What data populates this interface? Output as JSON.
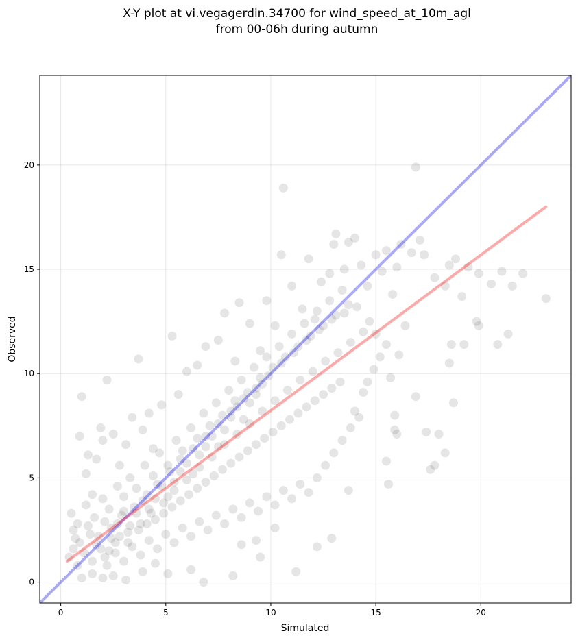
{
  "chart_data": {
    "type": "scatter",
    "title_lines": [
      "X-Y plot at vi.vegagerdin.34700 for wind_speed_at_10m_agl",
      "from 00-06h during autumn"
    ],
    "xlabel": "Simulated",
    "ylabel": "Observed",
    "xlim": [
      -1,
      24.3
    ],
    "ylim": [
      -1,
      24.3
    ],
    "xticks": [
      0,
      5,
      10,
      15,
      20
    ],
    "yticks": [
      0,
      5,
      10,
      15,
      20
    ],
    "grid": true,
    "point_color": "#333333",
    "series": [
      {
        "values": [
          [
            0.5,
            3.3
          ],
          [
            0.8,
            2.8
          ],
          [
            0.9,
            7.0
          ],
          [
            1.0,
            8.9
          ],
          [
            1.2,
            5.2
          ],
          [
            1.3,
            6.1
          ],
          [
            1.5,
            4.2
          ],
          [
            1.7,
            5.9
          ],
          [
            1.9,
            7.4
          ],
          [
            2.2,
            9.7
          ],
          [
            2.0,
            6.8
          ],
          [
            2.5,
            7.1
          ],
          [
            2.8,
            5.6
          ],
          [
            3.1,
            6.6
          ],
          [
            3.4,
            7.9
          ],
          [
            3.7,
            10.7
          ],
          [
            3.9,
            7.3
          ],
          [
            4.2,
            8.1
          ],
          [
            4.4,
            6.4
          ],
          [
            4.8,
            8.5
          ],
          [
            5.3,
            11.8
          ],
          [
            5.6,
            9.0
          ],
          [
            6.0,
            10.1
          ],
          [
            6.5,
            10.4
          ],
          [
            6.9,
            11.3
          ],
          [
            7.5,
            11.6
          ],
          [
            7.8,
            12.9
          ],
          [
            8.3,
            10.6
          ],
          [
            8.5,
            13.4
          ],
          [
            9.0,
            12.4
          ],
          [
            9.5,
            11.1
          ],
          [
            9.8,
            13.5
          ],
          [
            10.2,
            12.3
          ],
          [
            10.5,
            15.7
          ],
          [
            10.6,
            18.9
          ],
          [
            11.0,
            14.2
          ],
          [
            11.5,
            13.1
          ],
          [
            11.8,
            15.5
          ],
          [
            12.1,
            12.6
          ],
          [
            12.4,
            14.4
          ],
          [
            12.8,
            14.8
          ],
          [
            13.1,
            16.7
          ],
          [
            13.0,
            16.2
          ],
          [
            13.5,
            15.0
          ],
          [
            13.7,
            16.3
          ],
          [
            14.0,
            16.5
          ],
          [
            14.3,
            15.2
          ],
          [
            14.6,
            14.2
          ],
          [
            15.0,
            15.7
          ],
          [
            15.3,
            14.9
          ],
          [
            15.5,
            15.9
          ],
          [
            15.8,
            13.8
          ],
          [
            16.0,
            15.1
          ],
          [
            16.2,
            16.2
          ],
          [
            16.7,
            15.8
          ],
          [
            16.9,
            19.9
          ],
          [
            17.1,
            16.4
          ],
          [
            17.3,
            15.7
          ],
          [
            17.8,
            14.6
          ],
          [
            18.3,
            14.2
          ],
          [
            18.5,
            15.2
          ],
          [
            18.8,
            15.5
          ],
          [
            19.1,
            13.7
          ],
          [
            19.4,
            15.1
          ],
          [
            19.9,
            14.8
          ],
          [
            20.5,
            14.3
          ],
          [
            21.0,
            14.9
          ],
          [
            21.5,
            14.2
          ],
          [
            22.0,
            14.8
          ],
          [
            23.1,
            13.6
          ],
          [
            19.8,
            12.5
          ],
          [
            19.9,
            12.3
          ],
          [
            21.3,
            11.9
          ],
          [
            20.8,
            11.4
          ],
          [
            18.6,
            11.4
          ],
          [
            19.2,
            11.4
          ],
          [
            18.5,
            10.5
          ],
          [
            16.9,
            8.9
          ],
          [
            18.7,
            8.6
          ],
          [
            15.9,
            8.0
          ],
          [
            15.9,
            7.3
          ],
          [
            16.0,
            7.1
          ],
          [
            17.4,
            7.2
          ],
          [
            18.0,
            7.1
          ],
          [
            18.3,
            6.2
          ],
          [
            17.6,
            5.4
          ],
          [
            17.8,
            5.6
          ],
          [
            15.5,
            5.8
          ],
          [
            15.6,
            4.7
          ],
          [
            13.7,
            4.4
          ],
          [
            12.9,
            2.1
          ],
          [
            12.2,
            1.7
          ],
          [
            11.2,
            0.5
          ],
          [
            10.2,
            2.6
          ],
          [
            9.5,
            1.2
          ],
          [
            9.3,
            2.0
          ],
          [
            8.2,
            0.3
          ],
          [
            8.6,
            1.8
          ],
          [
            6.8,
            0.0
          ],
          [
            6.2,
            0.6
          ],
          [
            5.1,
            0.4
          ],
          [
            4.5,
            0.9
          ],
          [
            3.9,
            0.5
          ],
          [
            3.1,
            0.1
          ],
          [
            2.5,
            0.3
          ],
          [
            2.0,
            0.2
          ],
          [
            1.5,
            0.4
          ],
          [
            1.0,
            0.2
          ],
          [
            0.8,
            0.8
          ],
          [
            0.6,
            1.6
          ],
          [
            0.4,
            1.2
          ],
          [
            0.7,
            2.1
          ],
          [
            1.1,
            1.4
          ],
          [
            1.4,
            2.3
          ],
          [
            1.7,
            1.8
          ],
          [
            2.1,
            1.2
          ],
          [
            2.4,
            2.6
          ],
          [
            2.6,
            1.9
          ],
          [
            2.9,
            3.2
          ],
          [
            3.2,
            2.4
          ],
          [
            3.5,
            3.6
          ],
          [
            3.8,
            2.8
          ],
          [
            4.1,
            4.2
          ],
          [
            4.3,
            3.3
          ],
          [
            4.6,
            4.7
          ],
          [
            4.9,
            3.8
          ],
          [
            5.2,
            5.3
          ],
          [
            5.4,
            4.4
          ],
          [
            5.7,
            5.9
          ],
          [
            6.0,
            4.9
          ],
          [
            6.3,
            6.4
          ],
          [
            6.6,
            5.5
          ],
          [
            6.9,
            7.0
          ],
          [
            7.2,
            6.0
          ],
          [
            7.5,
            7.6
          ],
          [
            7.8,
            6.6
          ],
          [
            8.1,
            8.2
          ],
          [
            8.4,
            7.1
          ],
          [
            8.7,
            8.8
          ],
          [
            9.0,
            7.6
          ],
          [
            9.3,
            9.3
          ],
          [
            9.6,
            8.2
          ],
          [
            9.9,
            9.9
          ],
          [
            10.2,
            8.7
          ],
          [
            10.5,
            10.5
          ],
          [
            10.8,
            9.2
          ],
          [
            11.1,
            11.0
          ],
          [
            11.4,
            9.7
          ],
          [
            11.7,
            11.6
          ],
          [
            12.0,
            10.1
          ],
          [
            12.3,
            12.1
          ],
          [
            12.6,
            10.6
          ],
          [
            12.9,
            12.6
          ],
          [
            13.2,
            11.0
          ],
          [
            13.5,
            12.9
          ],
          [
            13.8,
            11.5
          ],
          [
            14.1,
            13.2
          ],
          [
            14.4,
            12.0
          ],
          [
            14.7,
            12.5
          ],
          [
            15.0,
            11.9
          ],
          [
            1.2,
            3.7
          ],
          [
            1.6,
            3.1
          ],
          [
            2.0,
            4.0
          ],
          [
            2.3,
            3.5
          ],
          [
            2.7,
            4.6
          ],
          [
            3.0,
            4.1
          ],
          [
            3.3,
            5.0
          ],
          [
            3.6,
            4.5
          ],
          [
            4.0,
            5.6
          ],
          [
            4.4,
            5.1
          ],
          [
            4.7,
            6.2
          ],
          [
            5.1,
            5.6
          ],
          [
            5.5,
            6.8
          ],
          [
            5.8,
            6.3
          ],
          [
            6.2,
            7.4
          ],
          [
            6.5,
            6.9
          ],
          [
            6.8,
            8.1
          ],
          [
            7.1,
            7.5
          ],
          [
            7.4,
            8.6
          ],
          [
            7.7,
            8.0
          ],
          [
            8.0,
            9.2
          ],
          [
            8.3,
            8.7
          ],
          [
            8.6,
            9.7
          ],
          [
            8.9,
            9.1
          ],
          [
            9.2,
            10.3
          ],
          [
            9.5,
            9.8
          ],
          [
            9.8,
            10.8
          ],
          [
            10.1,
            10.3
          ],
          [
            10.4,
            11.3
          ],
          [
            10.7,
            10.8
          ],
          [
            11.0,
            11.9
          ],
          [
            11.3,
            11.3
          ],
          [
            11.6,
            12.4
          ],
          [
            11.9,
            11.8
          ],
          [
            12.2,
            13.0
          ],
          [
            12.5,
            12.3
          ],
          [
            12.8,
            13.5
          ],
          [
            13.1,
            12.8
          ],
          [
            13.4,
            14.0
          ],
          [
            13.7,
            13.3
          ],
          [
            2.2,
            0.8
          ],
          [
            2.6,
            1.4
          ],
          [
            3.0,
            1.0
          ],
          [
            3.4,
            1.7
          ],
          [
            3.8,
            1.3
          ],
          [
            4.2,
            2.0
          ],
          [
            4.6,
            1.6
          ],
          [
            5.0,
            2.3
          ],
          [
            5.4,
            1.9
          ],
          [
            5.8,
            2.6
          ],
          [
            6.2,
            2.2
          ],
          [
            6.6,
            2.9
          ],
          [
            7.0,
            2.5
          ],
          [
            7.4,
            3.2
          ],
          [
            7.8,
            2.8
          ],
          [
            8.2,
            3.5
          ],
          [
            8.6,
            3.1
          ],
          [
            9.0,
            3.8
          ],
          [
            9.4,
            3.4
          ],
          [
            9.8,
            4.1
          ],
          [
            10.2,
            3.7
          ],
          [
            10.6,
            4.4
          ],
          [
            11.0,
            4.0
          ],
          [
            11.4,
            4.7
          ],
          [
            11.8,
            4.3
          ],
          [
            12.2,
            5.0
          ],
          [
            12.6,
            5.6
          ],
          [
            13.0,
            6.2
          ],
          [
            13.4,
            6.8
          ],
          [
            13.8,
            7.4
          ],
          [
            14.0,
            8.2
          ],
          [
            14.2,
            7.9
          ],
          [
            14.4,
            9.1
          ],
          [
            14.6,
            9.6
          ],
          [
            14.9,
            10.2
          ],
          [
            15.2,
            10.8
          ],
          [
            15.5,
            11.4
          ],
          [
            15.7,
            9.8
          ],
          [
            16.1,
            10.9
          ],
          [
            16.4,
            12.3
          ],
          [
            0.6,
            2.5
          ],
          [
            0.9,
            1.9
          ],
          [
            1.3,
            2.7
          ],
          [
            1.8,
            2.2
          ],
          [
            2.1,
            2.9
          ],
          [
            2.4,
            2.1
          ],
          [
            2.7,
            2.8
          ],
          [
            3.0,
            3.4
          ],
          [
            3.3,
            2.7
          ],
          [
            3.6,
            3.3
          ],
          [
            3.9,
            3.9
          ],
          [
            4.2,
            3.5
          ],
          [
            4.5,
            4.0
          ],
          [
            4.8,
            4.6
          ],
          [
            5.1,
            4.1
          ],
          [
            5.4,
            4.8
          ],
          [
            5.7,
            5.3
          ],
          [
            6.0,
            5.7
          ],
          [
            6.3,
            5.2
          ],
          [
            6.6,
            6.1
          ],
          [
            6.9,
            6.5
          ],
          [
            7.2,
            7.0
          ],
          [
            7.5,
            6.5
          ],
          [
            7.8,
            7.3
          ],
          [
            8.1,
            7.9
          ],
          [
            8.4,
            8.4
          ],
          [
            8.7,
            7.8
          ],
          [
            9.0,
            8.6
          ],
          [
            9.3,
            9.0
          ],
          [
            9.6,
            9.5
          ],
          [
            1.5,
            1.0
          ],
          [
            1.9,
            1.6
          ],
          [
            2.3,
            1.5
          ],
          [
            2.8,
            2.2
          ],
          [
            3.2,
            1.9
          ],
          [
            3.7,
            2.5
          ],
          [
            4.1,
            2.8
          ],
          [
            4.5,
            3.0
          ],
          [
            4.9,
            3.3
          ],
          [
            5.3,
            3.6
          ],
          [
            5.7,
            3.9
          ],
          [
            6.1,
            4.2
          ],
          [
            6.5,
            4.5
          ],
          [
            6.9,
            4.8
          ],
          [
            7.3,
            5.1
          ],
          [
            7.7,
            5.4
          ],
          [
            8.1,
            5.7
          ],
          [
            8.5,
            6.0
          ],
          [
            8.9,
            6.3
          ],
          [
            9.3,
            6.6
          ],
          [
            9.7,
            6.9
          ],
          [
            10.1,
            7.2
          ],
          [
            10.5,
            7.5
          ],
          [
            10.9,
            7.8
          ],
          [
            11.3,
            8.1
          ],
          [
            11.7,
            8.4
          ],
          [
            12.1,
            8.7
          ],
          [
            12.5,
            9.0
          ],
          [
            12.9,
            9.3
          ],
          [
            13.3,
            9.6
          ]
        ]
      }
    ],
    "lines": [
      {
        "name": "one-to-one",
        "color": "#0000ff",
        "points": [
          [
            -1,
            -1
          ],
          [
            24.3,
            24.3
          ]
        ]
      },
      {
        "name": "regression",
        "color": "#ff0000",
        "points": [
          [
            0.3,
            1.0
          ],
          [
            23.1,
            18.0
          ]
        ]
      }
    ]
  }
}
